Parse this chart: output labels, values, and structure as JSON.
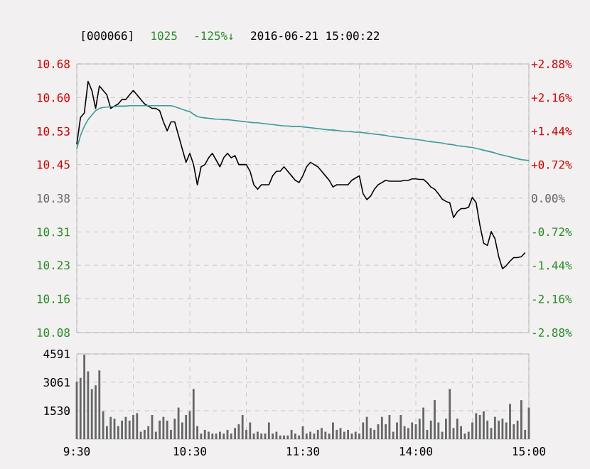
{
  "chart_data": [
    {
      "type": "line",
      "title": "[000066]",
      "annotations": [
        "1025",
        "-125%↓",
        "2016-06-21 15:00:22"
      ],
      "categories": [
        null,
        null,
        null,
        null,
        null,
        null,
        null,
        null,
        null,
        null,
        null,
        null,
        null,
        null,
        null,
        null,
        null,
        null,
        null,
        null,
        null,
        null,
        null,
        null,
        null,
        null,
        null,
        null,
        null,
        null,
        null,
        null,
        null,
        null,
        null,
        null,
        null,
        null,
        null,
        null,
        null,
        null,
        null,
        null,
        null,
        null,
        null,
        null,
        null,
        null,
        null,
        null,
        null,
        null,
        null,
        null,
        null,
        null,
        null,
        null,
        null,
        null,
        null,
        null,
        null,
        null,
        null,
        null,
        null,
        null,
        null,
        null,
        null,
        null,
        null,
        null,
        null,
        null,
        null,
        null,
        null,
        null,
        null,
        null,
        null,
        null,
        null,
        null,
        null,
        null,
        null,
        null,
        null,
        null,
        null,
        null,
        null,
        null,
        null,
        null,
        null,
        null,
        null,
        null,
        null,
        null,
        null,
        null,
        null,
        null,
        null,
        null,
        null,
        null,
        null,
        null,
        null,
        null,
        null,
        null,
        null
      ],
      "ylim": [
        10.081,
        10.679
      ],
      "yticks": [
        {
          "value": 10.081,
          "label": "10.08"
        },
        {
          "value": 10.156,
          "label": "10.16"
        },
        {
          "value": 10.231,
          "label": "10.23"
        },
        {
          "value": 10.305,
          "label": "10.31"
        },
        {
          "value": 10.38,
          "label": "10.38"
        },
        {
          "value": 10.455,
          "label": "10.45"
        },
        {
          "value": 10.529,
          "label": "10.53"
        },
        {
          "value": 10.604,
          "label": "10.60"
        },
        {
          "value": 10.679,
          "label": "10.68"
        }
      ],
      "y2lim": [
        -2.88,
        2.88
      ],
      "y2ticks": [
        {
          "value": -2.88,
          "label": "-2.88%"
        },
        {
          "value": -2.16,
          "label": "-2.16%"
        },
        {
          "value": -1.44,
          "label": "-1.44%"
        },
        {
          "value": -0.72,
          "label": "-0.72%"
        },
        {
          "value": 0,
          "label": "0.00%"
        },
        {
          "value": 0.72,
          "label": "+0.72%"
        },
        {
          "value": 1.44,
          "label": "+1.44%"
        },
        {
          "value": 2.16,
          "label": "+2.16%"
        },
        {
          "value": 2.88,
          "label": "+2.88%"
        }
      ],
      "grid": true,
      "tick_labels": "y",
      "series": [
        {
          "color": "#000000",
          "values": [
            10.5,
            10.56,
            10.57,
            10.64,
            10.62,
            10.58,
            10.63,
            10.62,
            10.61,
            10.58,
            10.585,
            10.59,
            10.6,
            10.6,
            10.61,
            10.62,
            10.61,
            10.6,
            10.59,
            10.585,
            10.58,
            10.58,
            10.575,
            10.55,
            10.53,
            10.55,
            10.55,
            10.52,
            10.49,
            10.46,
            10.48,
            10.455,
            10.41,
            10.45,
            10.455,
            10.47,
            10.48,
            10.465,
            10.45,
            10.47,
            10.48,
            10.47,
            10.475,
            10.455,
            10.455,
            10.455,
            10.44,
            10.41,
            10.4,
            10.41,
            10.41,
            10.41,
            10.43,
            10.44,
            10.44,
            10.45,
            10.44,
            10.43,
            10.42,
            10.415,
            10.43,
            10.45,
            10.46,
            10.455,
            10.45,
            10.44,
            10.43,
            10.42,
            10.405,
            10.41,
            10.41,
            10.41,
            10.41,
            10.42,
            10.425,
            10.43,
            10.39,
            10.377,
            10.385,
            10.4,
            10.41,
            10.415,
            10.42,
            10.418,
            10.418,
            10.418,
            10.418,
            10.42,
            10.42,
            10.423,
            10.423,
            10.422,
            10.422,
            10.415,
            10.405,
            10.4,
            10.39,
            10.378,
            10.373,
            10.37,
            10.337,
            10.35,
            10.357,
            10.357,
            10.36,
            10.382,
            10.37,
            10.32,
            10.28,
            10.275,
            10.306,
            10.29,
            10.25,
            10.223,
            10.23,
            10.24,
            10.248,
            10.248,
            10.25,
            10.259,
            null
          ]
        },
        {
          "color": "#3a9a9a",
          "values": [
            10.49,
            10.52,
            10.54,
            10.555,
            10.565,
            10.575,
            10.58,
            10.582,
            10.583,
            10.584,
            10.584,
            10.585,
            10.585,
            10.585,
            10.586,
            10.586,
            10.586,
            10.586,
            10.586,
            10.586,
            10.586,
            10.586,
            10.586,
            10.586,
            10.586,
            10.586,
            10.584,
            10.581,
            10.578,
            10.575,
            10.573,
            10.567,
            10.562,
            10.56,
            10.559,
            10.558,
            10.557,
            10.556,
            10.556,
            10.555,
            10.555,
            10.554,
            10.553,
            10.552,
            10.551,
            10.55,
            10.549,
            10.548,
            10.548,
            10.547,
            10.546,
            10.545,
            10.544,
            10.543,
            10.542,
            10.541,
            10.541,
            10.54,
            10.54,
            10.54,
            10.539,
            10.538,
            10.537,
            10.536,
            10.535,
            10.534,
            10.533,
            10.532,
            10.532,
            10.531,
            10.53,
            10.529,
            10.529,
            10.528,
            10.527,
            10.527,
            10.526,
            10.525,
            10.524,
            10.523,
            10.522,
            10.521,
            10.52,
            10.518,
            10.517,
            10.516,
            10.515,
            10.514,
            10.513,
            10.512,
            10.511,
            10.51,
            10.509,
            10.507,
            10.506,
            10.505,
            10.504,
            10.503,
            10.501,
            10.5,
            10.499,
            10.497,
            10.496,
            10.495,
            10.494,
            10.493,
            10.491,
            10.489,
            10.487,
            10.485,
            10.483,
            10.481,
            10.478,
            10.476,
            10.474,
            10.472,
            10.47,
            10.468,
            10.466,
            10.465,
            10.464
          ]
        }
      ]
    },
    {
      "type": "bar",
      "categories": [
        "9:30",
        null,
        null,
        null,
        null,
        null,
        null,
        null,
        null,
        null,
        null,
        null,
        null,
        null,
        null,
        null,
        null,
        null,
        null,
        null,
        null,
        null,
        null,
        null,
        null,
        null,
        null,
        null,
        null,
        null,
        "10:30",
        null,
        null,
        null,
        null,
        null,
        null,
        null,
        null,
        null,
        null,
        null,
        null,
        null,
        null,
        null,
        null,
        null,
        null,
        null,
        null,
        null,
        null,
        null,
        null,
        null,
        null,
        null,
        null,
        null,
        "11:30",
        null,
        null,
        null,
        null,
        null,
        null,
        null,
        null,
        null,
        null,
        null,
        null,
        null,
        null,
        null,
        null,
        null,
        null,
        null,
        null,
        null,
        null,
        null,
        null,
        null,
        null,
        null,
        null,
        null,
        "14:00",
        null,
        null,
        null,
        null,
        null,
        null,
        null,
        null,
        null,
        null,
        null,
        null,
        null,
        null,
        null,
        null,
        null,
        null,
        null,
        null,
        null,
        null,
        null,
        null,
        null,
        null,
        null,
        null,
        null,
        "15:00"
      ],
      "ylim": [
        0,
        4591
      ],
      "yticks": [
        1530,
        3061,
        4591
      ],
      "grid": true,
      "series": [
        {
          "color": "#666666",
          "values": [
            3100,
            3300,
            4550,
            3650,
            2700,
            2900,
            3700,
            1500,
            700,
            1200,
            1100,
            700,
            1000,
            1200,
            1000,
            1300,
            1400,
            400,
            500,
            700,
            1300,
            400,
            1000,
            1200,
            1000,
            500,
            1100,
            1700,
            900,
            1300,
            1500,
            2700,
            700,
            300,
            500,
            400,
            300,
            300,
            400,
            300,
            500,
            300,
            600,
            800,
            1300,
            500,
            900,
            300,
            400,
            300,
            300,
            900,
            300,
            400,
            200,
            200,
            200,
            500,
            300,
            200,
            700,
            300,
            400,
            300,
            500,
            600,
            400,
            300,
            900,
            500,
            600,
            400,
            500,
            300,
            400,
            300,
            900,
            1200,
            600,
            500,
            800,
            1200,
            800,
            1300,
            400,
            900,
            1300,
            700,
            600,
            900,
            800,
            1100,
            1700,
            500,
            1000,
            2100,
            900,
            400,
            1100,
            2700,
            600,
            1100,
            700,
            300,
            400,
            900,
            1400,
            1300,
            1500,
            1000,
            600,
            1200,
            1000,
            1100,
            900,
            1900,
            800,
            1000,
            2100,
            500,
            1700
          ]
        }
      ]
    }
  ]
}
